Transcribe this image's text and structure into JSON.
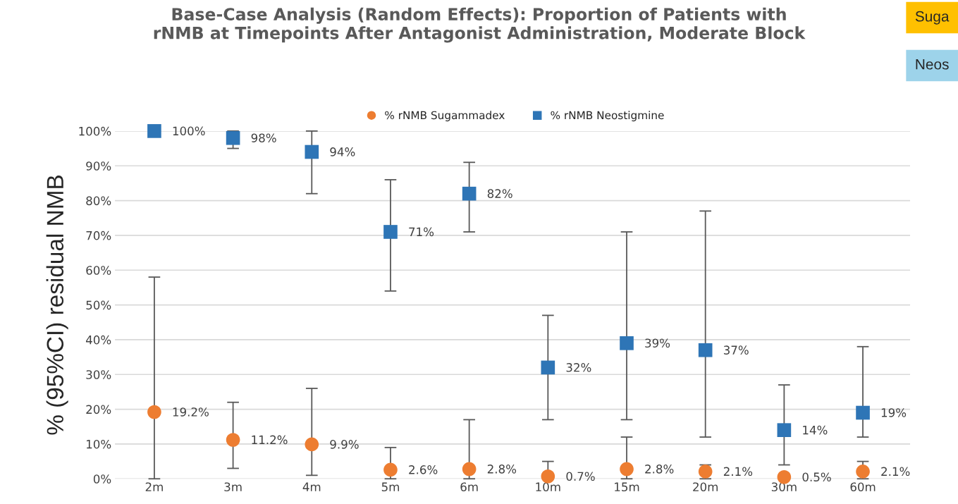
{
  "chart_data": {
    "type": "scatter",
    "title": "Base-Case Analysis (Random Effects): Proportion of Patients with\nrNMB at Timepoints After Antagonist Administration, Moderate Block",
    "ylabel": "% (95%CI) residual NMB",
    "categories": [
      "2m",
      "3m",
      "4m",
      "5m",
      "6m",
      "10m",
      "15m",
      "20m",
      "30m",
      "60m"
    ],
    "series": [
      {
        "name": "% rNMB Sugammadex",
        "color": "#ed7d31",
        "marker": "circle",
        "values": [
          19.2,
          11.2,
          9.9,
          2.6,
          2.8,
          0.7,
          2.8,
          2.1,
          0.5,
          2.1
        ],
        "value_labels": [
          "19.2%",
          "11.2%",
          "9.9%",
          "2.6%",
          "2.8%",
          "0.7%",
          "2.8%",
          "2.1%",
          "0.5%",
          "2.1%"
        ],
        "errors": [
          [
            0,
            58
          ],
          [
            3,
            22
          ],
          [
            1,
            26
          ],
          [
            0,
            9
          ],
          [
            0,
            17
          ],
          [
            0.7,
            5
          ],
          [
            0,
            12
          ],
          [
            0,
            4
          ],
          null,
          [
            0,
            5
          ]
        ]
      },
      {
        "name": "% rNMB Neostigmine",
        "color": "#2e75b6",
        "marker": "square",
        "values": [
          100,
          98,
          94,
          71,
          82,
          32,
          39,
          37,
          14,
          19
        ],
        "value_labels": [
          "100%",
          "98%",
          "94%",
          "71%",
          "82%",
          "32%",
          "39%",
          "37%",
          "14%",
          "19%"
        ],
        "errors": [
          null,
          [
            95,
            100
          ],
          [
            82,
            100
          ],
          [
            54,
            86
          ],
          [
            71,
            91
          ],
          [
            17,
            47
          ],
          [
            17,
            71
          ],
          [
            12,
            77
          ],
          [
            4,
            27
          ],
          [
            12,
            38
          ]
        ]
      }
    ],
    "ylim": [
      0,
      100
    ],
    "yticks": [
      {
        "value": 0,
        "label": "0%"
      },
      {
        "value": 10,
        "label": "10%"
      },
      {
        "value": 20,
        "label": "20%"
      },
      {
        "value": 30,
        "label": "30%"
      },
      {
        "value": 40,
        "label": "40%"
      },
      {
        "value": 50,
        "label": "50%"
      },
      {
        "value": 60,
        "label": "60%"
      },
      {
        "value": 70,
        "label": "70%"
      },
      {
        "value": 80,
        "label": "80%"
      },
      {
        "value": 90,
        "label": "90%"
      },
      {
        "value": 100,
        "label": "100%"
      }
    ],
    "grid": "y",
    "legend": "top",
    "annotations": [
      "Suga",
      "Neos"
    ]
  }
}
